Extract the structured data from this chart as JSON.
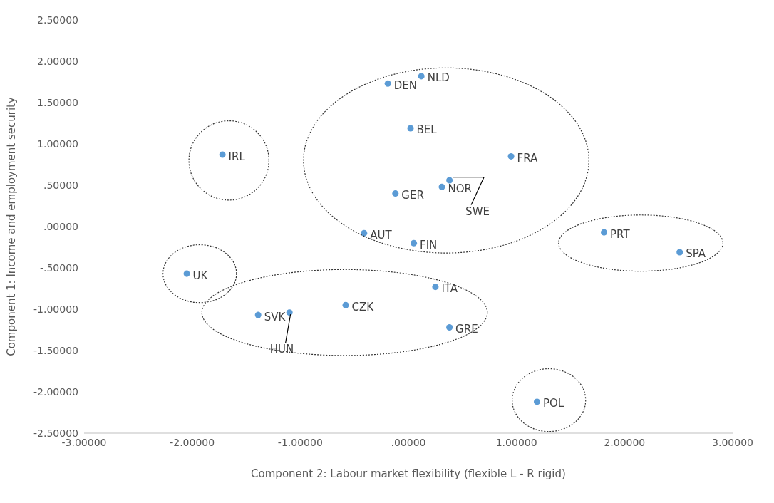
{
  "chart_data": {
    "type": "scatter",
    "xlabel": "Component  2: Labour market flexibility (flexible L - R rigid)",
    "ylabel": "Component  1: Income and employment security",
    "x": [
      0.12,
      -0.19,
      0.02,
      0.95,
      -1.72,
      0.38,
      0.31,
      -0.12,
      -0.41,
      0.05,
      1.81,
      2.51,
      -2.05,
      0.25,
      -0.58,
      -1.39,
      -1.1,
      0.38,
      1.19
    ],
    "values": [
      1.82,
      1.73,
      1.19,
      0.85,
      0.87,
      0.56,
      0.48,
      0.4,
      -0.08,
      -0.2,
      -0.07,
      -0.31,
      -0.57,
      -0.73,
      -0.95,
      -1.07,
      -1.04,
      -1.22,
      -2.12
    ],
    "value_labels": [
      "NLD",
      "DEN",
      "BEL",
      "FRA",
      "IRL",
      "SWE",
      "NOR",
      "GER",
      "AUT",
      "FIN",
      "PRT",
      "SPA",
      "UK",
      "ITA",
      "CZK",
      "SVK",
      "HUN",
      "GRE",
      "POL"
    ],
    "color": "#5b9bd5",
    "marker": "circle",
    "grid": false,
    "legend": false,
    "xlim": [
      -3,
      3
    ],
    "xticks": [
      {
        "value": -3,
        "label": "-3.00000"
      },
      {
        "value": -2,
        "label": "-2.00000"
      },
      {
        "value": -1,
        "label": "-1.00000"
      },
      {
        "value": 0,
        "label": ".00000"
      },
      {
        "value": 1,
        "label": "1.00000"
      },
      {
        "value": 2,
        "label": "2.00000"
      },
      {
        "value": 3,
        "label": "3.00000"
      }
    ],
    "ylim": [
      -2.5,
      2.5
    ],
    "yticks": [
      {
        "value": -2.5,
        "label": "-2.50000"
      },
      {
        "value": -2,
        "label": "-2.00000"
      },
      {
        "value": -1.5,
        "label": "-1.50000"
      },
      {
        "value": -1,
        "label": "-1.00000"
      },
      {
        "value": -0.5,
        "label": "-.50000"
      },
      {
        "value": 0,
        "label": ".00000"
      },
      {
        "value": 0.5,
        "label": ".50000"
      },
      {
        "value": 1,
        "label": "1.00000"
      },
      {
        "value": 1.5,
        "label": "1.50000"
      },
      {
        "value": 2,
        "label": "2.00000"
      },
      {
        "value": 2.5,
        "label": "2.50000"
      }
    ]
  }
}
